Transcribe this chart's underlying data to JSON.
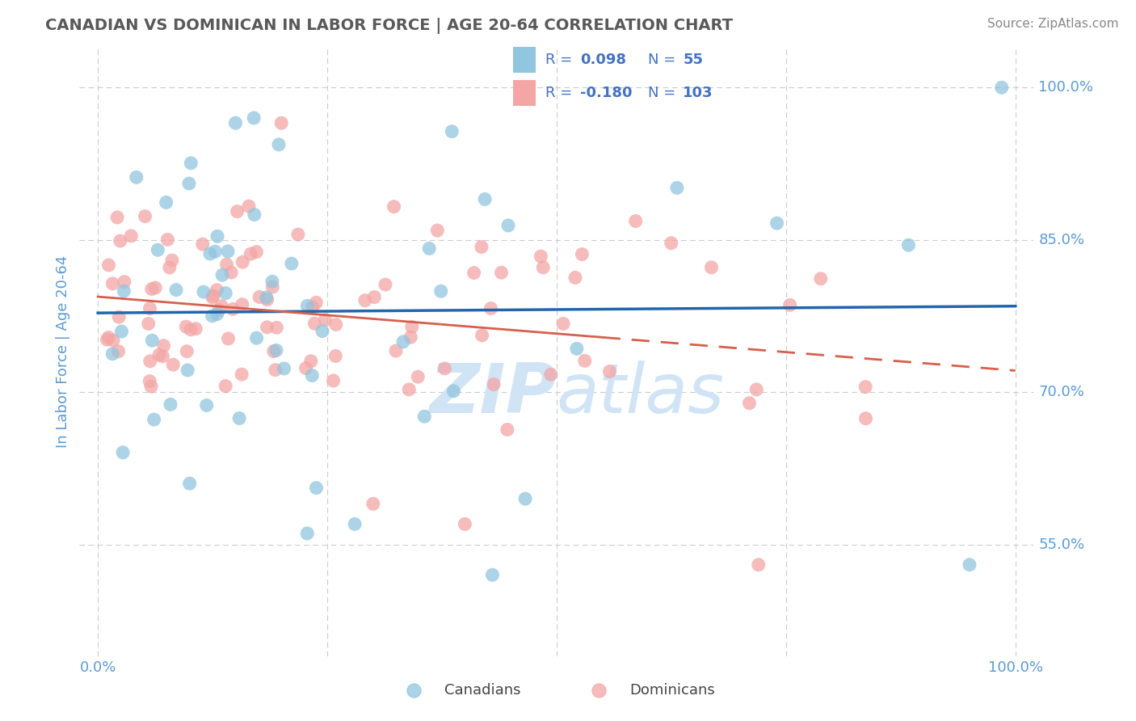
{
  "title": "CANADIAN VS DOMINICAN IN LABOR FORCE | AGE 20-64 CORRELATION CHART",
  "source_text": "Source: ZipAtlas.com",
  "ylabel": "In Labor Force | Age 20-64",
  "xlim": [
    -0.02,
    1.02
  ],
  "ylim": [
    0.44,
    1.04
  ],
  "yticks": [
    0.55,
    0.7,
    0.85,
    1.0
  ],
  "ytick_labels": [
    "55.0%",
    "70.0%",
    "85.0%",
    "100.0%"
  ],
  "xtick_labels": [
    "0.0%",
    "100.0%"
  ],
  "canadian_R": 0.098,
  "canadian_N": 55,
  "dominican_R": -0.18,
  "dominican_N": 103,
  "canadian_color": "#92c5de",
  "dominican_color": "#f4a6a6",
  "trend_blue": "#2166ac",
  "trend_pink": "#d6604d",
  "background_color": "#ffffff",
  "grid_color": "#cccccc",
  "tick_label_color": "#5b9bd5",
  "legend_color": "#4472c4",
  "watermark_color": "#d0e4f5",
  "title_color": "#595959",
  "source_color": "#888888",
  "ylabel_color": "#5b9bd5",
  "legend_box_color": "#aaaaaa",
  "bottom_legend_label_color": "#444444"
}
